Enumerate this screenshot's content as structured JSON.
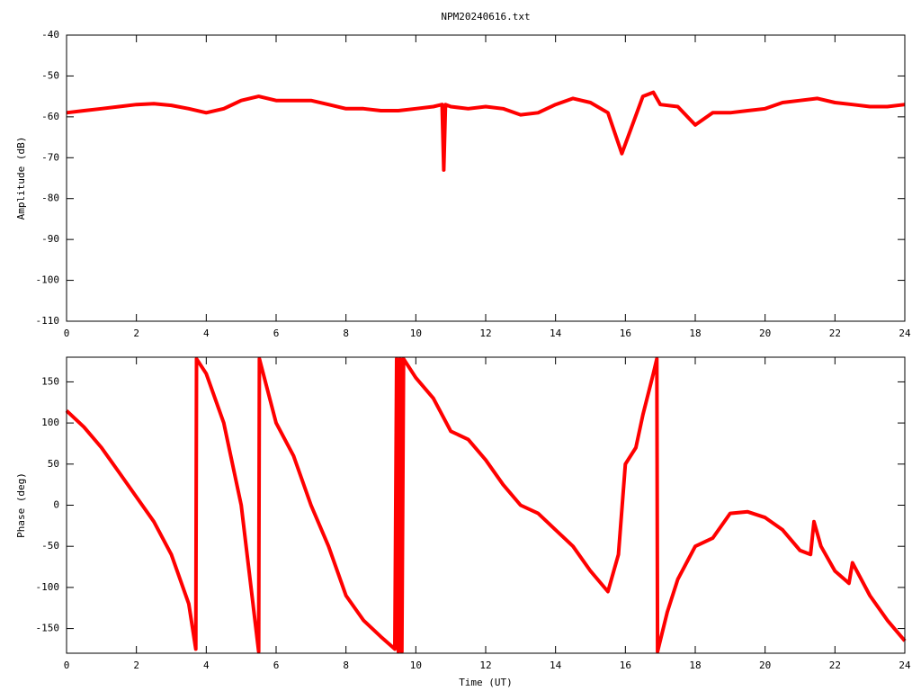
{
  "chart_data": [
    {
      "type": "line",
      "title": "NPM20240616.txt",
      "ylabel": "Amplitude (dB)",
      "color": "#ff0000",
      "xlim": [
        0,
        24
      ],
      "xticks": [
        0,
        2,
        4,
        6,
        8,
        10,
        12,
        14,
        16,
        18,
        20,
        22,
        24
      ],
      "ylim": [
        -110,
        -40
      ],
      "yticks": [
        -110,
        -100,
        -90,
        -80,
        -70,
        -60,
        -50,
        -40
      ],
      "x": [
        0,
        0.5,
        1,
        1.5,
        2,
        2.5,
        3,
        3.5,
        4,
        4.5,
        5,
        5.5,
        6,
        6.5,
        7,
        7.5,
        8,
        8.5,
        9,
        9.5,
        10,
        10.5,
        10.75,
        10.8,
        10.85,
        11,
        11.5,
        12,
        12.5,
        13,
        13.5,
        14,
        14.5,
        15,
        15.5,
        15.9,
        16.2,
        16.5,
        16.8,
        17,
        17.5,
        18,
        18.5,
        19,
        19.5,
        20,
        20.5,
        21,
        21.5,
        22,
        22.5,
        23,
        23.5,
        24
      ],
      "values": [
        -59,
        -58.5,
        -58,
        -57.5,
        -57,
        -56.8,
        -57.2,
        -58,
        -59,
        -58,
        -56,
        -55,
        -56,
        -56,
        -56,
        -57,
        -58,
        -58,
        -58.5,
        -58.5,
        -58,
        -57.5,
        -57,
        -73,
        -57,
        -57.5,
        -58,
        -57.5,
        -58,
        -59.5,
        -59,
        -57,
        -55.5,
        -56.5,
        -59,
        -69,
        -62,
        -55,
        -54,
        -57,
        -57.5,
        -62,
        -59,
        -59,
        -58.5,
        -58,
        -56.5,
        -56,
        -55.5,
        -56.5,
        -57,
        -57.5,
        -57.5,
        -57
      ]
    },
    {
      "type": "line",
      "ylabel": "Phase (deg)",
      "xlabel": "Time (UT)",
      "color": "#ff0000",
      "xlim": [
        0,
        24
      ],
      "xticks": [
        0,
        2,
        4,
        6,
        8,
        10,
        12,
        14,
        16,
        18,
        20,
        22,
        24
      ],
      "ylim": [
        -180,
        180
      ],
      "yticks": [
        -150,
        -100,
        -50,
        0,
        50,
        100,
        150
      ],
      "x": [
        0,
        0.5,
        1,
        1.5,
        2,
        2.5,
        3,
        3.5,
        3.7,
        3.72,
        4,
        4.5,
        5,
        5.5,
        5.52,
        6,
        6.5,
        7,
        7.5,
        8,
        8.5,
        9,
        9.4,
        9.45,
        9.5,
        9.55,
        9.6,
        9.65,
        10,
        10.5,
        11,
        11.5,
        12,
        12.5,
        13,
        13.5,
        14,
        14.5,
        15,
        15.5,
        15.8,
        16,
        16.3,
        16.5,
        16.8,
        16.9,
        16.92,
        17.2,
        17.5,
        18,
        18.5,
        19,
        19.5,
        20,
        20.5,
        21,
        21.3,
        21.4,
        21.6,
        22,
        22.4,
        22.5,
        23,
        23.5,
        24
      ],
      "values": [
        115,
        95,
        70,
        40,
        10,
        -20,
        -60,
        -120,
        -175,
        178,
        160,
        100,
        0,
        -178,
        178,
        100,
        60,
        0,
        -50,
        -110,
        -140,
        -160,
        -175,
        178,
        -178,
        178,
        -178,
        178,
        155,
        130,
        90,
        80,
        55,
        25,
        0,
        -10,
        -30,
        -50,
        -80,
        -105,
        -60,
        50,
        70,
        110,
        160,
        178,
        -178,
        -130,
        -90,
        -50,
        -40,
        -10,
        -8,
        -15,
        -30,
        -55,
        -60,
        -20,
        -50,
        -80,
        -95,
        -70,
        -110,
        -140,
        -165
      ]
    }
  ]
}
